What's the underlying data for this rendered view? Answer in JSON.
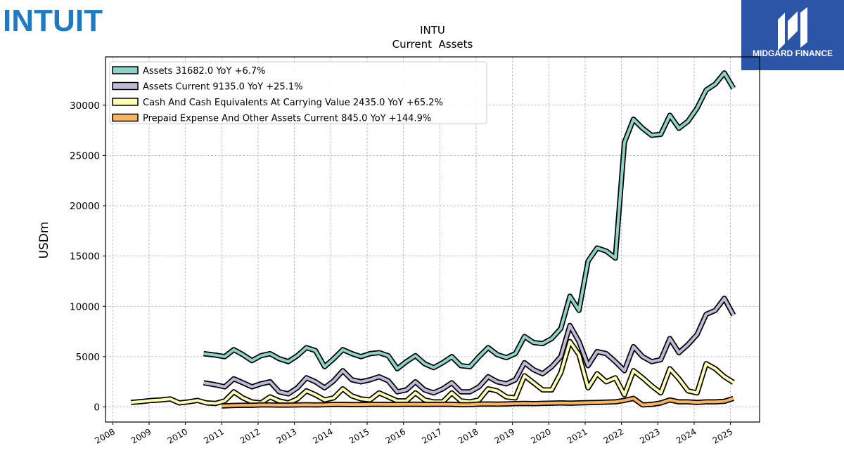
{
  "company_logo": {
    "text": "INTUIT",
    "color": "#1f7ac4"
  },
  "publisher_logo": {
    "text": "MIDGARD FINANCE",
    "bg_color": "#2b56a8"
  },
  "chart_data": {
    "type": "line",
    "title": "INTU",
    "subtitle": "Current  Assets",
    "xlabel": "",
    "ylabel": "USDm",
    "xlim": [
      2007.8,
      2025.8
    ],
    "ylim": [
      -1500,
      34800
    ],
    "x_ticks": [
      "2008",
      "2009",
      "2010",
      "2011",
      "2012",
      "2013",
      "2014",
      "2015",
      "2016",
      "2017",
      "2018",
      "2019",
      "2020",
      "2021",
      "2022",
      "2023",
      "2024",
      "2025"
    ],
    "y_ticks": [
      "0",
      "5000",
      "10000",
      "15000",
      "20000",
      "25000",
      "30000"
    ],
    "grid": true,
    "legend_position": "top-left",
    "series": [
      {
        "name": "Assets  31682.0 YoY +6.7%",
        "color": "#8ed3c7",
        "points": [
          [
            2010.5,
            5300
          ],
          [
            2010.83,
            5150
          ],
          [
            2011.08,
            5000
          ],
          [
            2011.33,
            5700
          ],
          [
            2011.58,
            5200
          ],
          [
            2011.83,
            4600
          ],
          [
            2012.08,
            5100
          ],
          [
            2012.33,
            5300
          ],
          [
            2012.58,
            4800
          ],
          [
            2012.83,
            4500
          ],
          [
            2013.08,
            5100
          ],
          [
            2013.33,
            5900
          ],
          [
            2013.58,
            5600
          ],
          [
            2013.83,
            4000
          ],
          [
            2014.08,
            4800
          ],
          [
            2014.33,
            5700
          ],
          [
            2014.58,
            5300
          ],
          [
            2014.83,
            5000
          ],
          [
            2015.08,
            5300
          ],
          [
            2015.33,
            5400
          ],
          [
            2015.58,
            5100
          ],
          [
            2015.83,
            3800
          ],
          [
            2016.08,
            4500
          ],
          [
            2016.33,
            5100
          ],
          [
            2016.58,
            4300
          ],
          [
            2016.83,
            3900
          ],
          [
            2017.08,
            4400
          ],
          [
            2017.33,
            5000
          ],
          [
            2017.58,
            4100
          ],
          [
            2017.83,
            4000
          ],
          [
            2018.08,
            5000
          ],
          [
            2018.33,
            5900
          ],
          [
            2018.58,
            5200
          ],
          [
            2018.83,
            4900
          ],
          [
            2019.08,
            5300
          ],
          [
            2019.33,
            7000
          ],
          [
            2019.58,
            6400
          ],
          [
            2019.83,
            6300
          ],
          [
            2020.08,
            6800
          ],
          [
            2020.33,
            7800
          ],
          [
            2020.58,
            11000
          ],
          [
            2020.83,
            9600
          ],
          [
            2021.08,
            14500
          ],
          [
            2021.33,
            15800
          ],
          [
            2021.58,
            15500
          ],
          [
            2021.83,
            14800
          ],
          [
            2022.08,
            26300
          ],
          [
            2022.33,
            28600
          ],
          [
            2022.58,
            27700
          ],
          [
            2022.83,
            27000
          ],
          [
            2023.08,
            27100
          ],
          [
            2023.33,
            29000
          ],
          [
            2023.58,
            27700
          ],
          [
            2023.83,
            28400
          ],
          [
            2024.08,
            29700
          ],
          [
            2024.33,
            31500
          ],
          [
            2024.58,
            32100
          ],
          [
            2024.83,
            33200
          ],
          [
            2025.08,
            31682
          ]
        ]
      },
      {
        "name": "Assets Current  9135.0 YoY +25.1%",
        "color": "#bebada",
        "points": [
          [
            2010.5,
            2400
          ],
          [
            2010.83,
            2200
          ],
          [
            2011.08,
            2000
          ],
          [
            2011.33,
            2800
          ],
          [
            2011.58,
            2400
          ],
          [
            2011.83,
            2000
          ],
          [
            2012.08,
            2300
          ],
          [
            2012.33,
            2500
          ],
          [
            2012.58,
            1500
          ],
          [
            2012.83,
            1300
          ],
          [
            2013.08,
            1900
          ],
          [
            2013.33,
            2900
          ],
          [
            2013.58,
            2500
          ],
          [
            2013.83,
            1900
          ],
          [
            2014.08,
            2600
          ],
          [
            2014.33,
            3600
          ],
          [
            2014.58,
            2700
          ],
          [
            2014.83,
            2500
          ],
          [
            2015.08,
            2700
          ],
          [
            2015.33,
            3000
          ],
          [
            2015.58,
            2600
          ],
          [
            2015.83,
            1500
          ],
          [
            2016.08,
            1700
          ],
          [
            2016.33,
            2500
          ],
          [
            2016.58,
            1700
          ],
          [
            2016.83,
            1400
          ],
          [
            2017.08,
            1800
          ],
          [
            2017.33,
            2400
          ],
          [
            2017.58,
            1500
          ],
          [
            2017.83,
            1500
          ],
          [
            2018.08,
            2000
          ],
          [
            2018.33,
            3000
          ],
          [
            2018.58,
            2500
          ],
          [
            2018.83,
            2300
          ],
          [
            2019.08,
            2700
          ],
          [
            2019.33,
            4400
          ],
          [
            2019.58,
            3700
          ],
          [
            2019.83,
            3300
          ],
          [
            2020.08,
            4000
          ],
          [
            2020.33,
            5000
          ],
          [
            2020.58,
            8100
          ],
          [
            2020.83,
            6500
          ],
          [
            2021.08,
            4100
          ],
          [
            2021.33,
            5500
          ],
          [
            2021.58,
            5300
          ],
          [
            2021.83,
            4500
          ],
          [
            2022.08,
            3600
          ],
          [
            2022.33,
            6000
          ],
          [
            2022.58,
            5000
          ],
          [
            2022.83,
            4500
          ],
          [
            2023.08,
            4700
          ],
          [
            2023.33,
            6800
          ],
          [
            2023.58,
            5400
          ],
          [
            2023.83,
            6200
          ],
          [
            2024.08,
            7200
          ],
          [
            2024.33,
            9200
          ],
          [
            2024.58,
            9600
          ],
          [
            2024.83,
            10800
          ],
          [
            2025.08,
            9135
          ]
        ]
      },
      {
        "name": "Cash And Cash Equivalents At Carrying Value  2435.0 YoY +65.2%",
        "color": "#ffffb3",
        "points": [
          [
            2008.5,
            450
          ],
          [
            2008.83,
            550
          ],
          [
            2009.08,
            650
          ],
          [
            2009.33,
            700
          ],
          [
            2009.58,
            800
          ],
          [
            2009.83,
            400
          ],
          [
            2010.08,
            500
          ],
          [
            2010.33,
            650
          ],
          [
            2010.58,
            400
          ],
          [
            2010.83,
            350
          ],
          [
            2011.08,
            600
          ],
          [
            2011.33,
            1500
          ],
          [
            2011.58,
            900
          ],
          [
            2011.83,
            500
          ],
          [
            2012.08,
            400
          ],
          [
            2012.33,
            1000
          ],
          [
            2012.58,
            600
          ],
          [
            2012.83,
            400
          ],
          [
            2013.08,
            800
          ],
          [
            2013.33,
            1600
          ],
          [
            2013.58,
            1200
          ],
          [
            2013.83,
            700
          ],
          [
            2014.08,
            900
          ],
          [
            2014.33,
            1800
          ],
          [
            2014.58,
            1100
          ],
          [
            2014.83,
            800
          ],
          [
            2015.08,
            700
          ],
          [
            2015.33,
            1400
          ],
          [
            2015.58,
            1000
          ],
          [
            2015.83,
            600
          ],
          [
            2016.08,
            600
          ],
          [
            2016.33,
            1400
          ],
          [
            2016.58,
            700
          ],
          [
            2016.83,
            500
          ],
          [
            2017.08,
            500
          ],
          [
            2017.33,
            1400
          ],
          [
            2017.58,
            600
          ],
          [
            2017.83,
            500
          ],
          [
            2018.08,
            700
          ],
          [
            2018.33,
            1800
          ],
          [
            2018.58,
            1600
          ],
          [
            2018.83,
            1000
          ],
          [
            2019.08,
            900
          ],
          [
            2019.33,
            3100
          ],
          [
            2019.58,
            2400
          ],
          [
            2019.83,
            1700
          ],
          [
            2020.08,
            1700
          ],
          [
            2020.33,
            3400
          ],
          [
            2020.58,
            6500
          ],
          [
            2020.83,
            5200
          ],
          [
            2021.08,
            1900
          ],
          [
            2021.33,
            3300
          ],
          [
            2021.58,
            2500
          ],
          [
            2021.83,
            2900
          ],
          [
            2022.08,
            1200
          ],
          [
            2022.33,
            3600
          ],
          [
            2022.58,
            2900
          ],
          [
            2022.83,
            2100
          ],
          [
            2023.08,
            1400
          ],
          [
            2023.33,
            3800
          ],
          [
            2023.58,
            2800
          ],
          [
            2023.83,
            1600
          ],
          [
            2024.08,
            1400
          ],
          [
            2024.33,
            4300
          ],
          [
            2024.58,
            3800
          ],
          [
            2024.83,
            3000
          ],
          [
            2025.08,
            2435
          ]
        ]
      },
      {
        "name": "Prepaid Expense And Other Assets Current  845.0 YoY +144.9%",
        "color": "#fdb462",
        "points": [
          [
            2011.0,
            100
          ],
          [
            2011.33,
            150
          ],
          [
            2011.58,
            170
          ],
          [
            2011.83,
            170
          ],
          [
            2012.08,
            200
          ],
          [
            2012.33,
            200
          ],
          [
            2012.58,
            180
          ],
          [
            2012.83,
            180
          ],
          [
            2013.08,
            200
          ],
          [
            2013.33,
            220
          ],
          [
            2013.58,
            200
          ],
          [
            2013.83,
            220
          ],
          [
            2014.08,
            250
          ],
          [
            2014.33,
            250
          ],
          [
            2014.58,
            240
          ],
          [
            2014.83,
            240
          ],
          [
            2015.08,
            260
          ],
          [
            2015.33,
            260
          ],
          [
            2015.58,
            250
          ],
          [
            2015.83,
            250
          ],
          [
            2016.08,
            260
          ],
          [
            2016.33,
            270
          ],
          [
            2016.58,
            250
          ],
          [
            2016.83,
            260
          ],
          [
            2017.08,
            260
          ],
          [
            2017.33,
            260
          ],
          [
            2017.58,
            220
          ],
          [
            2017.83,
            230
          ],
          [
            2018.08,
            280
          ],
          [
            2018.33,
            300
          ],
          [
            2018.58,
            280
          ],
          [
            2018.83,
            300
          ],
          [
            2019.08,
            330
          ],
          [
            2019.33,
            350
          ],
          [
            2019.58,
            330
          ],
          [
            2019.83,
            360
          ],
          [
            2020.08,
            380
          ],
          [
            2020.33,
            400
          ],
          [
            2020.58,
            380
          ],
          [
            2020.83,
            400
          ],
          [
            2021.08,
            430
          ],
          [
            2021.33,
            450
          ],
          [
            2021.58,
            480
          ],
          [
            2021.83,
            500
          ],
          [
            2022.08,
            650
          ],
          [
            2022.33,
            850
          ],
          [
            2022.58,
            200
          ],
          [
            2022.83,
            250
          ],
          [
            2023.08,
            400
          ],
          [
            2023.33,
            700
          ],
          [
            2023.58,
            500
          ],
          [
            2023.83,
            500
          ],
          [
            2024.08,
            450
          ],
          [
            2024.33,
            500
          ],
          [
            2024.58,
            500
          ],
          [
            2024.83,
            560
          ],
          [
            2025.08,
            845
          ]
        ]
      }
    ]
  }
}
